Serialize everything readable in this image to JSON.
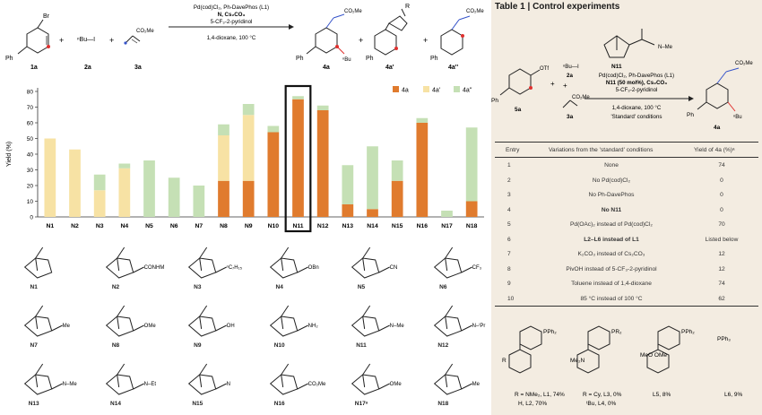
{
  "scheme": {
    "compound_labels": [
      "1a",
      "2a",
      "3a",
      "4a",
      "4a'",
      "4a''"
    ],
    "plus": "+",
    "reagent_2a": "ⁿBu—I",
    "reagent_3a": "CO₂Me",
    "product_ester": "CO₂Me",
    "product_bu": "ⁿBu",
    "ph": "Ph",
    "br": "Br",
    "r": "R",
    "conditions": [
      "Pd(cod)Cl₂, Ph-DavePhos (L1)",
      "N, Cs₂CO₃",
      "5-CF₃-2-pyridinol"
    ],
    "solvent": "1,4-dioxane, 100 °C"
  },
  "chart_data": {
    "type": "bar",
    "ylabel": "Yield (%)",
    "ylim": [
      0,
      80
    ],
    "yticks": [
      0,
      10,
      20,
      30,
      40,
      50,
      60,
      70,
      80
    ],
    "categories": [
      "N1",
      "N2",
      "N3",
      "N4",
      "N5",
      "N6",
      "N7",
      "N8",
      "N9",
      "N10",
      "N11",
      "N12",
      "N13",
      "N14",
      "N15",
      "N16",
      "N17",
      "N18"
    ],
    "stacked": true,
    "series": [
      {
        "name": "4a",
        "color": "#e07b2e",
        "values": [
          0,
          0,
          0,
          0,
          0,
          0,
          0,
          23,
          23,
          54,
          75,
          68,
          8,
          5,
          23,
          60,
          0,
          10
        ]
      },
      {
        "name": "4a'",
        "color": "#f7e2a4",
        "values": [
          50,
          43,
          17,
          31,
          0,
          0,
          0,
          29,
          42,
          0,
          0,
          0,
          0,
          0,
          0,
          0,
          0,
          0
        ]
      },
      {
        "name": "4a''",
        "color": "#c5e0b5",
        "values": [
          0,
          0,
          10,
          3,
          36,
          25,
          20,
          7,
          7,
          4,
          2,
          3,
          25,
          40,
          13,
          3,
          4,
          47
        ]
      }
    ],
    "highlight": "N11",
    "legend_position": "top-right",
    "grid": false
  },
  "ligands": [
    {
      "id": "N1",
      "label": "N1"
    },
    {
      "id": "N2",
      "label": "N2",
      "sub": "CONHMe"
    },
    {
      "id": "N3",
      "label": "N3",
      "sub": "ⁿC₇H₁₅"
    },
    {
      "id": "N4",
      "label": "N4",
      "sub": "OBn"
    },
    {
      "id": "N5",
      "label": "N5",
      "sub": "CN"
    },
    {
      "id": "N6",
      "label": "N6",
      "sub": "CF₃"
    },
    {
      "id": "N7",
      "label": "N7",
      "sub": "Me"
    },
    {
      "id": "N8",
      "label": "N8",
      "sub": "OMe"
    },
    {
      "id": "N9",
      "label": "N9",
      "sub": "OH"
    },
    {
      "id": "N10",
      "label": "N10",
      "sub": "NH₂"
    },
    {
      "id": "N11",
      "label": "N11",
      "sub": "N–Me"
    },
    {
      "id": "N12",
      "label": "N12",
      "sub": "N–ⁱPr"
    },
    {
      "id": "N13",
      "label": "N13",
      "sub": "N–Me"
    },
    {
      "id": "N14",
      "label": "N14",
      "sub": "N–Et"
    },
    {
      "id": "N15",
      "label": "N15",
      "sub": "N"
    },
    {
      "id": "N16",
      "label": "N16",
      "sub": "CO₂Me"
    },
    {
      "id": "N17",
      "label": "N17ᵃ",
      "sub": "OMe"
    },
    {
      "id": "N18",
      "label": "N18",
      "sub": "Me"
    }
  ],
  "table": {
    "title": "Table 1 | Control experiments",
    "n11_label": "N11",
    "n11_sub": "N–Me",
    "conditions": [
      "ⁿBu—I",
      "2a",
      "Pd(cod)Cl₂, Ph-DavePhos (L1)",
      "N11 (50 mol%), Cs₂CO₃",
      "5-CF₃-2-pyridinol",
      "1,4-dioxane, 100 °C",
      "'Standard' conditions"
    ],
    "substrate_label": "5a",
    "substrate_otf": "OTf",
    "acrylate_label": "3a",
    "acrylate": "CO₂Me",
    "product_label": "4a",
    "product_ester": "CO₂Me",
    "product_bu": "ⁿBu",
    "ph": "Ph",
    "headers": [
      "Entry",
      "Variations from the 'standard' conditions",
      "Yield of 4a (%)ᵃ"
    ],
    "rows": [
      [
        "1",
        "None",
        "74"
      ],
      [
        "2",
        "No Pd(cod)Cl₂",
        "0"
      ],
      [
        "3",
        "No Ph-DavePhos",
        "0"
      ],
      [
        "4",
        "No N11",
        "0"
      ],
      [
        "5",
        "Pd(OAc)₂ instead of Pd(cod)Cl₂",
        "70"
      ],
      [
        "6",
        "L2–L6 instead of L1",
        "Listed below"
      ],
      [
        "7",
        "K₂CO₃ instead of Cs₂CO₃",
        "12"
      ],
      [
        "8",
        "PivOH instead of 5-CF₃-2-pyridinol",
        "12"
      ],
      [
        "9",
        "Toluene instead of 1,4-dioxane",
        "74"
      ],
      [
        "10",
        "85 °C instead of 100 °C",
        "62"
      ]
    ],
    "phosphines": [
      {
        "struct": "PPh₂",
        "sub": "R",
        "caption1": "R = NMe₂, L1, 74%",
        "caption2": "H, L2, 70%"
      },
      {
        "struct": "PR₂",
        "sub": "Me₂N",
        "caption1": "R = Cy, L3, 0%",
        "caption2": "ᵗBu, L4, 0%"
      },
      {
        "struct": "PPh₂",
        "sub": "MeO   OMe",
        "caption1": "L5, 8%",
        "caption2": ""
      },
      {
        "struct": "PPh₃",
        "sub": "",
        "caption1": "L6, 9%",
        "caption2": ""
      }
    ]
  }
}
